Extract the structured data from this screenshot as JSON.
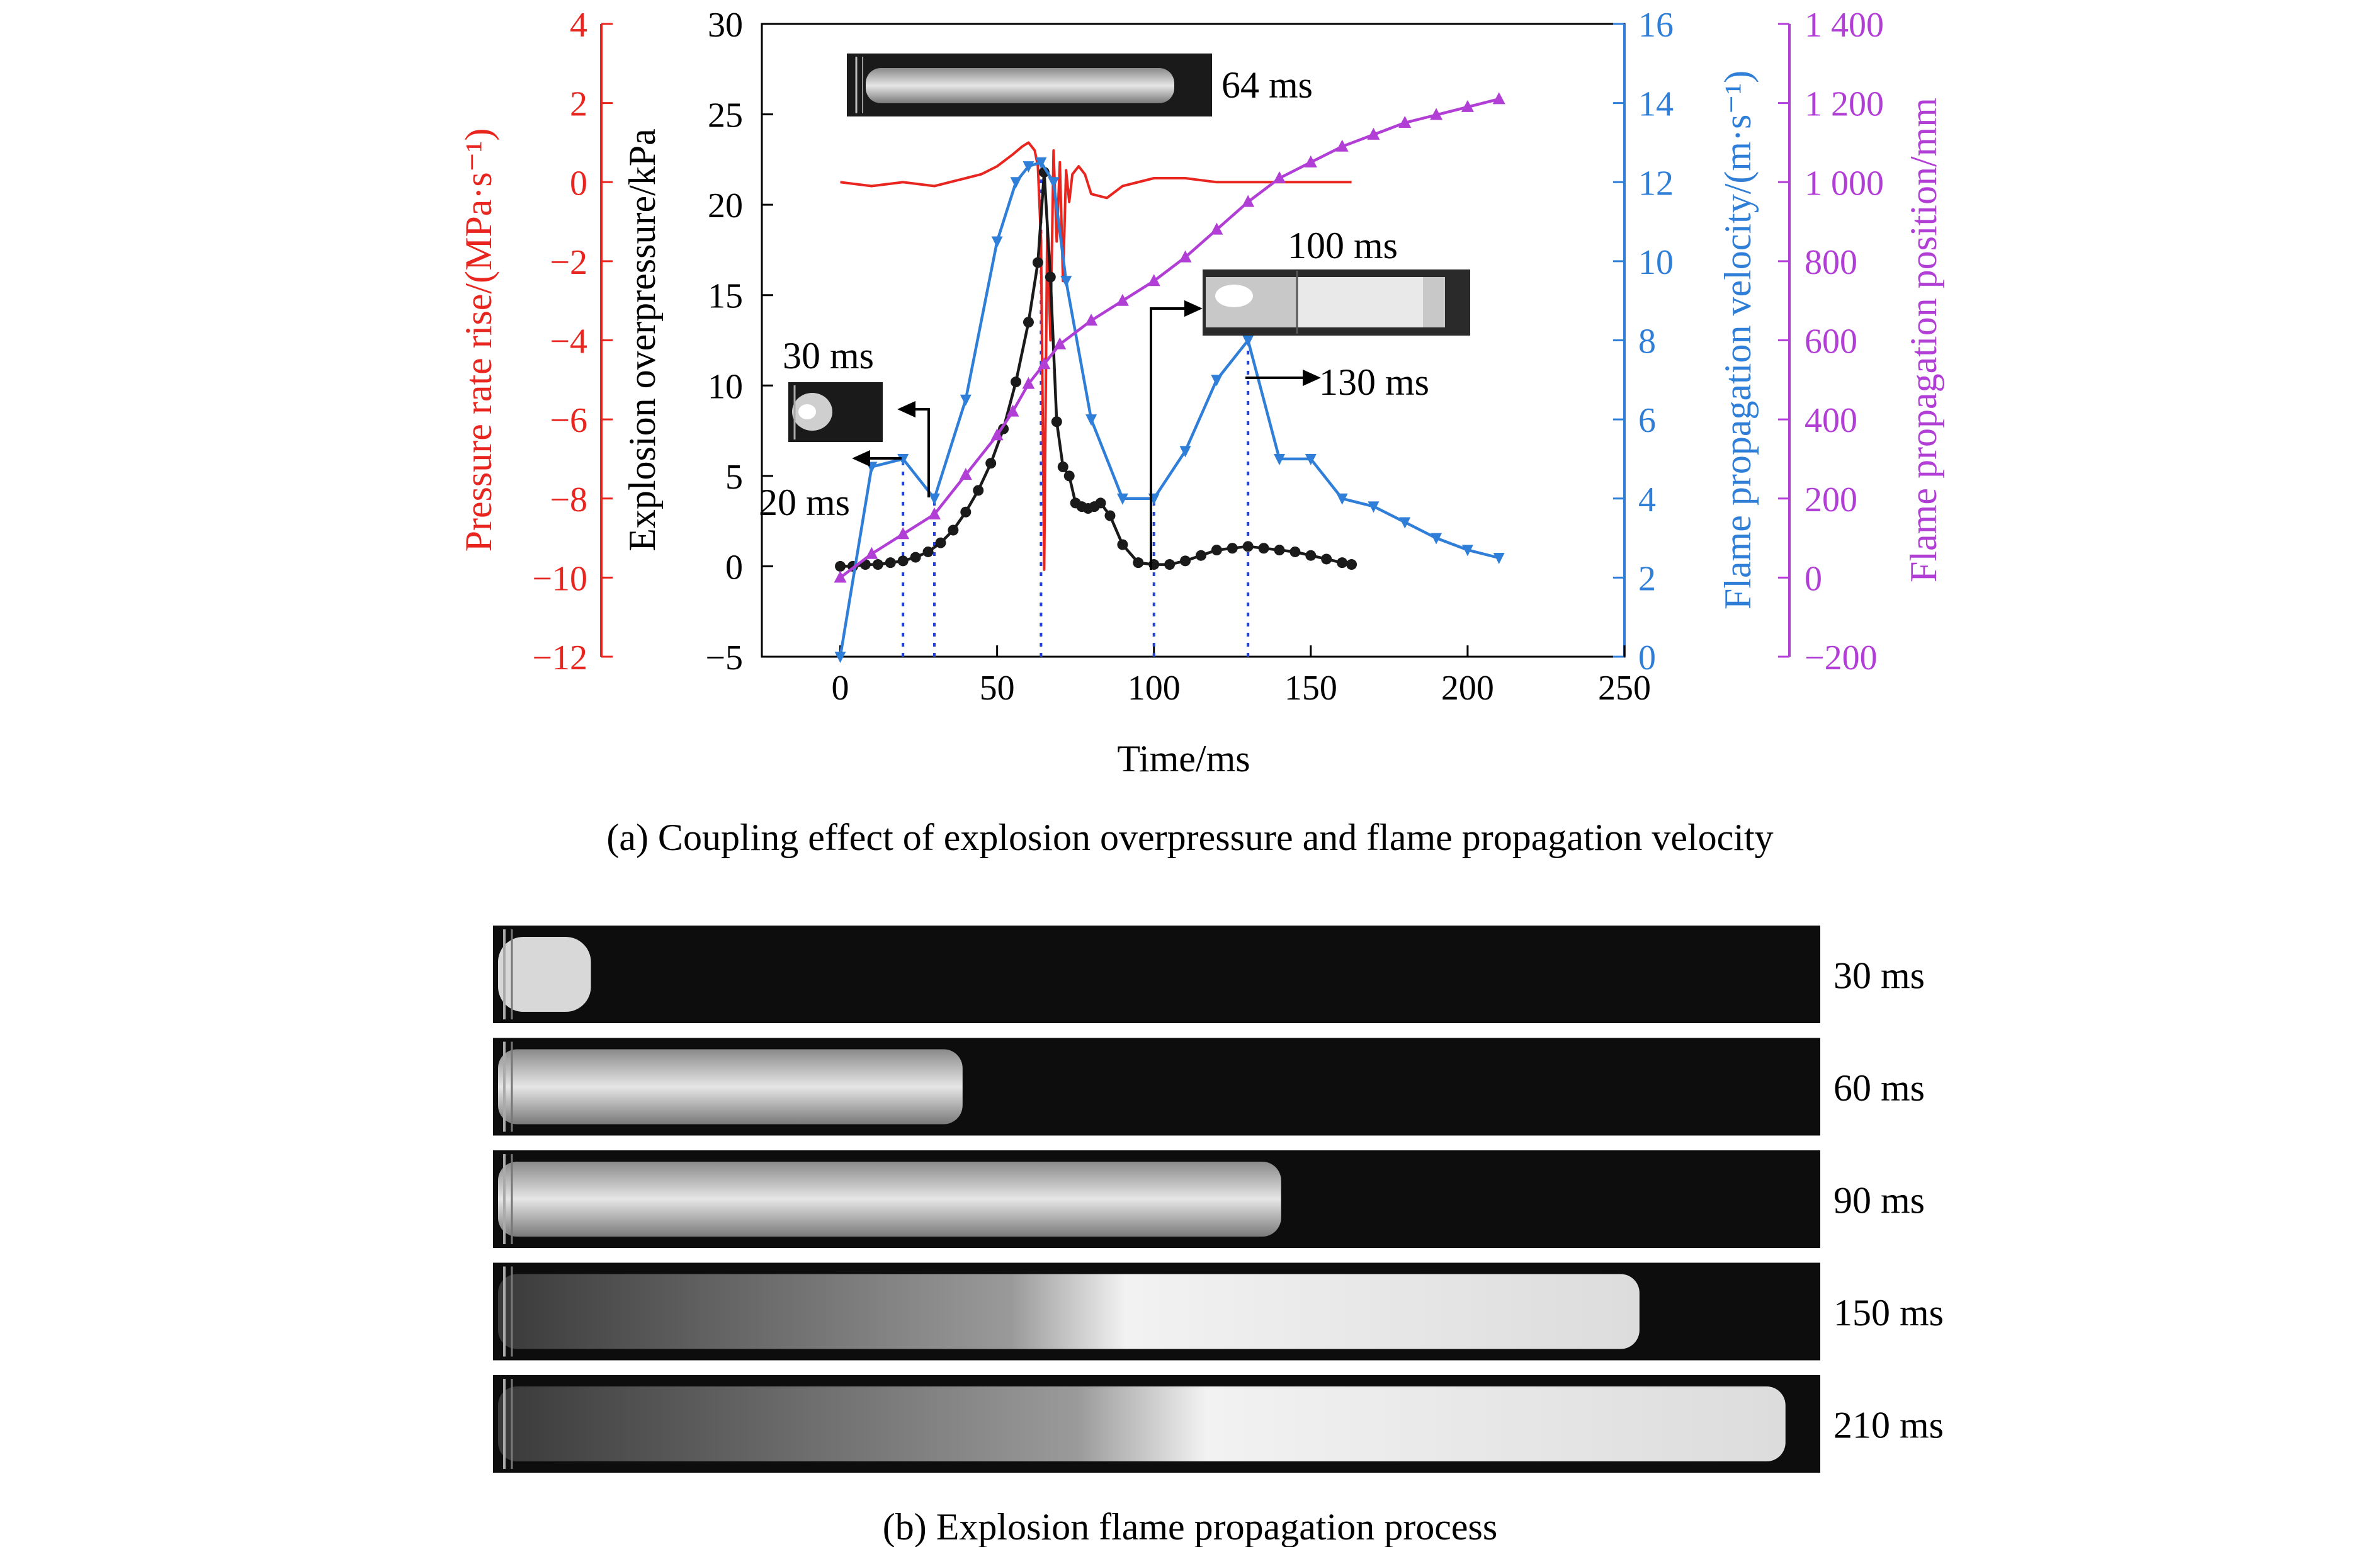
{
  "chart_data": [
    {
      "type": "line",
      "xlabel": "Time/ms",
      "xlim": [
        -25,
        250
      ],
      "xticks": [
        0,
        50,
        100,
        150,
        200,
        250
      ],
      "caption": "(a) Coupling effect of explosion overpressure and flame propagation velocity",
      "axes": {
        "pressure_rate": {
          "label": "Pressure rate rise/(MPa·s⁻¹)",
          "ylim": [
            -12,
            4
          ],
          "ticks": [
            -12,
            -10,
            -8,
            -6,
            -4,
            -2,
            0,
            2,
            4
          ],
          "tick_labels": [
            "−12",
            "−10",
            "−8",
            "−6",
            "−4",
            "−2",
            "0",
            "2",
            "4"
          ],
          "color": "#e8251f"
        },
        "overpressure": {
          "label": "Explosion overpressure/kPa",
          "ylim": [
            -5,
            30
          ],
          "ticks": [
            -5,
            0,
            5,
            10,
            15,
            20,
            25,
            30
          ],
          "tick_labels": [
            "−5",
            "0",
            "5",
            "10",
            "15",
            "20",
            "25",
            "30"
          ],
          "color": "#000000"
        },
        "velocity": {
          "label": "Flame propagation velocity/(m·s⁻¹)",
          "ylim": [
            0,
            16
          ],
          "ticks": [
            0,
            2,
            4,
            6,
            8,
            10,
            12,
            14,
            16
          ],
          "tick_labels": [
            "0",
            "2",
            "4",
            "6",
            "8",
            "10",
            "12",
            "14",
            "16"
          ],
          "color": "#2f7ed8"
        },
        "position": {
          "label": "Flame propagation position/mm",
          "ylim": [
            -200,
            1400
          ],
          "ticks": [
            -200,
            0,
            200,
            400,
            600,
            800,
            1000,
            1200,
            1400
          ],
          "tick_labels": [
            "−200",
            "0",
            "200",
            "400",
            "600",
            "800",
            "1 000",
            "1 200",
            "1 400"
          ],
          "color": "#b13fd6"
        }
      },
      "series": [
        {
          "axis": "pressure_rate",
          "color": "#e8251f",
          "marker": "none",
          "x": [
            0,
            10,
            20,
            30,
            40,
            45,
            50,
            55,
            58,
            60,
            62,
            63,
            64,
            65,
            66,
            67,
            68,
            69,
            70,
            71,
            72,
            73,
            74,
            76,
            78,
            80,
            85,
            90,
            100,
            110,
            120,
            130,
            140,
            150,
            163
          ],
          "y": [
            0.0,
            -0.1,
            0.0,
            -0.1,
            0.1,
            0.2,
            0.4,
            0.7,
            0.9,
            1.0,
            0.8,
            0.4,
            -1.5,
            -9.8,
            -1.0,
            -4.0,
            0.8,
            -1.5,
            0.5,
            -2.5,
            0.3,
            -0.5,
            0.2,
            0.4,
            0.2,
            -0.3,
            -0.4,
            -0.1,
            0.1,
            0.1,
            0.0,
            0.0,
            0.0,
            0.0,
            0.0
          ]
        },
        {
          "axis": "overpressure",
          "color": "#1a1a1a",
          "marker": "circle",
          "x": [
            0,
            4,
            8,
            12,
            16,
            20,
            24,
            28,
            32,
            36,
            40,
            44,
            48,
            52,
            56,
            60,
            63,
            65,
            67,
            69,
            71,
            73,
            75,
            77,
            79,
            81,
            83,
            86,
            90,
            95,
            100,
            105,
            110,
            115,
            120,
            125,
            130,
            135,
            140,
            145,
            150,
            155,
            160,
            163
          ],
          "y": [
            0.0,
            0.0,
            0.1,
            0.1,
            0.2,
            0.3,
            0.5,
            0.8,
            1.3,
            2.0,
            3.0,
            4.2,
            5.7,
            7.6,
            10.2,
            13.5,
            16.8,
            21.8,
            16.0,
            8.0,
            5.5,
            5.0,
            3.5,
            3.3,
            3.2,
            3.3,
            3.5,
            2.8,
            1.2,
            0.2,
            0.1,
            0.1,
            0.3,
            0.6,
            0.9,
            1.0,
            1.1,
            1.0,
            0.9,
            0.8,
            0.6,
            0.4,
            0.2,
            0.1
          ]
        },
        {
          "axis": "velocity",
          "color": "#2f7ed8",
          "marker": "triangle-down",
          "x": [
            0,
            10,
            20,
            30,
            40,
            50,
            56,
            60,
            64,
            68,
            72,
            80,
            90,
            100,
            110,
            120,
            130,
            140,
            150,
            160,
            170,
            180,
            190,
            200,
            210
          ],
          "y": [
            0.0,
            4.8,
            5.0,
            4.0,
            6.5,
            10.5,
            12.0,
            12.4,
            12.5,
            12.0,
            9.5,
            6.0,
            4.0,
            4.0,
            5.2,
            7.0,
            8.0,
            5.0,
            5.0,
            4.0,
            3.8,
            3.4,
            3.0,
            2.7,
            2.5
          ]
        },
        {
          "axis": "position",
          "color": "#b13fd6",
          "marker": "triangle-up",
          "x": [
            0,
            10,
            20,
            30,
            40,
            50,
            55,
            60,
            65,
            70,
            80,
            90,
            100,
            110,
            120,
            130,
            140,
            150,
            160,
            170,
            180,
            190,
            200,
            210
          ],
          "y": [
            0,
            60,
            110,
            160,
            260,
            360,
            420,
            490,
            540,
            590,
            650,
            700,
            750,
            810,
            880,
            950,
            1010,
            1050,
            1090,
            1120,
            1150,
            1170,
            1190,
            1210
          ]
        }
      ],
      "vlines": [
        20,
        30,
        64,
        100,
        130
      ],
      "annotations": [
        "20 ms",
        "30 ms",
        "64 ms",
        "100 ms",
        "130 ms"
      ]
    }
  ],
  "panel_b": {
    "caption": "(b) Explosion flame propagation process",
    "frames": [
      {
        "label": "30 ms",
        "flame_fraction": 0.07
      },
      {
        "label": "60 ms",
        "flame_fraction": 0.35
      },
      {
        "label": "90 ms",
        "flame_fraction": 0.59
      },
      {
        "label": "150 ms",
        "flame_fraction": 0.86
      },
      {
        "label": "210 ms",
        "flame_fraction": 0.97
      }
    ]
  }
}
